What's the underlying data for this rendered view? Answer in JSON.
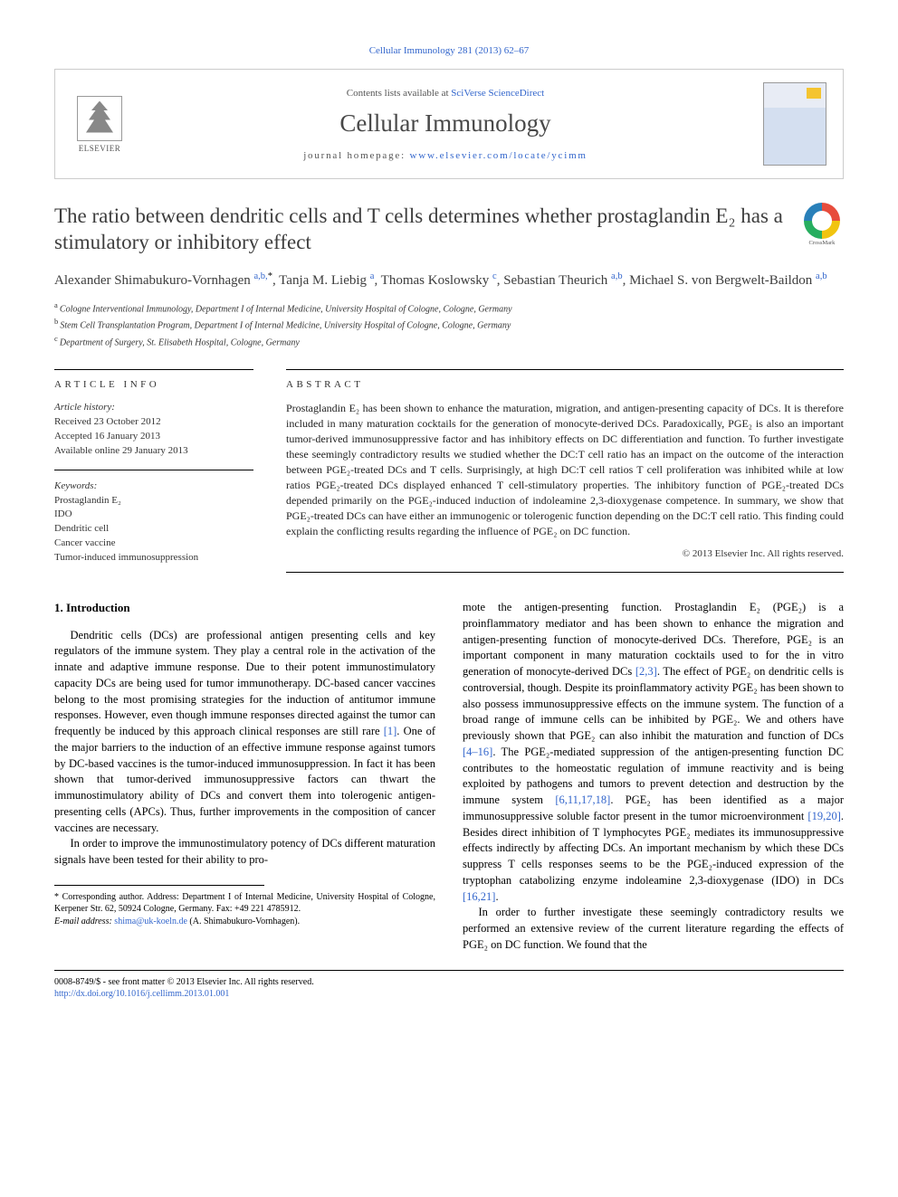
{
  "top_citation": "Cellular Immunology 281 (2013) 62–67",
  "header": {
    "contents_prefix": "Contents lists available at ",
    "contents_link": "SciVerse ScienceDirect",
    "journal": "Cellular Immunology",
    "homepage_prefix": "journal homepage: ",
    "homepage_link": "www.elsevier.com/locate/ycimm",
    "publisher_logo_text": "ELSEVIER"
  },
  "title": "The ratio between dendritic cells and T cells determines whether prostaglandin E₂ has a stimulatory or inhibitory effect",
  "authors_html": "Alexander Shimabukuro-Vornhagen|a,b,*|, Tanja M. Liebig|a|, Thomas Koslowsky|c|, Sebastian Theurich|a,b|, Michael S. von Bergwelt-Baildon|a,b|",
  "authors": [
    {
      "name": "Alexander Shimabukuro-Vornhagen",
      "aff": "a,b,",
      "star": "*"
    },
    {
      "name": "Tanja M. Liebig",
      "aff": "a"
    },
    {
      "name": "Thomas Koslowsky",
      "aff": "c"
    },
    {
      "name": "Sebastian Theurich",
      "aff": "a,b"
    },
    {
      "name": "Michael S. von Bergwelt-Baildon",
      "aff": "a,b"
    }
  ],
  "affiliations": [
    {
      "key": "a",
      "text": "Cologne Interventional Immunology, Department I of Internal Medicine, University Hospital of Cologne, Cologne, Germany"
    },
    {
      "key": "b",
      "text": "Stem Cell Transplantation Program, Department I of Internal Medicine, University Hospital of Cologne, Cologne, Germany"
    },
    {
      "key": "c",
      "text": "Department of Surgery, St. Elisabeth Hospital, Cologne, Germany"
    }
  ],
  "article_info": {
    "label": "ARTICLE INFO",
    "history_label": "Article history:",
    "received": "Received 23 October 2012",
    "accepted": "Accepted 16 January 2013",
    "online": "Available online 29 January 2013",
    "keywords_label": "Keywords:",
    "keywords": [
      "Prostaglandin E₂",
      "IDO",
      "Dendritic cell",
      "Cancer vaccine",
      "Tumor-induced immunosuppression"
    ]
  },
  "abstract": {
    "label": "ABSTRACT",
    "text": "Prostaglandin E₂ has been shown to enhance the maturation, migration, and antigen-presenting capacity of DCs. It is therefore included in many maturation cocktails for the generation of monocyte-derived DCs. Paradoxically, PGE₂ is also an important tumor-derived immunosuppressive factor and has inhibitory effects on DC differentiation and function. To further investigate these seemingly contradictory results we studied whether the DC:T cell ratio has an impact on the outcome of the interaction between PGE₂-treated DCs and T cells. Surprisingly, at high DC:T cell ratios T cell proliferation was inhibited while at low ratios PGE₂-treated DCs displayed enhanced T cell-stimulatory properties. The inhibitory function of PGE₂-treated DCs depended primarily on the PGE₂-induced induction of indoleamine 2,3-dioxygenase competence. In summary, we show that PGE₂-treated DCs can have either an immunogenic or tolerogenic function depending on the DC:T cell ratio. This finding could explain the conflicting results regarding the influence of PGE₂ on DC function.",
    "copyright": "© 2013 Elsevier Inc. All rights reserved."
  },
  "section_heading": "1. Introduction",
  "body": {
    "col1_p1": "Dendritic cells (DCs) are professional antigen presenting cells and key regulators of the immune system. They play a central role in the activation of the innate and adaptive immune response. Due to their potent immunostimulatory capacity DCs are being used for tumor immunotherapy. DC-based cancer vaccines belong to the most promising strategies for the induction of antitumor immune responses. However, even though immune responses directed against the tumor can frequently be induced by this approach clinical responses are still rare ",
    "col1_p1_ref": "[1]",
    "col1_p1_cont": ". One of the major barriers to the induction of an effective immune response against tumors by DC-based vaccines is the tumor-induced immunosuppression. In fact it has been shown that tumor-derived immunosuppressive factors can thwart the immunostimulatory ability of DCs and convert them into tolerogenic antigen-presenting cells (APCs). Thus, further improvements in the composition of cancer vaccines are necessary.",
    "col1_p2": "In order to improve the immunostimulatory potency of DCs different maturation signals have been tested for their ability to pro-",
    "col2_p1": "mote the antigen-presenting function. Prostaglandin E₂ (PGE₂) is a proinflammatory mediator and has been shown to enhance the migration and antigen-presenting function of monocyte-derived DCs. Therefore, PGE₂ is an important component in many maturation cocktails used to for the in vitro generation of monocyte-derived DCs ",
    "col2_p1_ref1": "[2,3]",
    "col2_p1_mid": ". The effect of PGE₂ on dendritic cells is controversial, though. Despite its proinflammatory activity PGE₂ has been shown to also possess immunosuppressive effects on the immune system. The function of a broad range of immune cells can be inhibited by PGE₂. We and others have previously shown that PGE₂ can also inhibit the maturation and function of DCs ",
    "col2_p1_ref2": "[4–16]",
    "col2_p1_mid2": ". The PGE₂-mediated suppression of the antigen-presenting function DC contributes to the homeostatic regulation of immune reactivity and is being exploited by pathogens and tumors to prevent detection and destruction by the immune system ",
    "col2_p1_ref3": "[6,11,17,18]",
    "col2_p1_mid3": ". PGE₂ has been identified as a major immunosuppressive soluble factor present in the tumor microenvironment ",
    "col2_p1_ref4": "[19,20]",
    "col2_p1_mid4": ". Besides direct inhibition of T lymphocytes PGE₂ mediates its immunosuppressive effects indirectly by affecting DCs. An important mechanism by which these DCs suppress T cells responses seems to be the PGE₂-induced expression of the tryptophan catabolizing enzyme indoleamine 2,3-dioxygenase (IDO) in DCs ",
    "col2_p1_ref5": "[16,21]",
    "col2_p1_end": ".",
    "col2_p2": "In order to further investigate these seemingly contradictory results we performed an extensive review of the current literature regarding the effects of PGE₂ on DC function. We found that the"
  },
  "footnotes": {
    "corr": "* Corresponding author. Address: Department I of Internal Medicine, University Hospital of Cologne, Kerpener Str. 62, 50924 Cologne, Germany. Fax: +49 221 4785912.",
    "email_label": "E-mail address: ",
    "email": "shima@uk-koeln.de",
    "email_suffix": " (A. Shimabukuro-Vornhagen)."
  },
  "footer": {
    "left_line1": "0008-8749/$ - see front matter © 2013 Elsevier Inc. All rights reserved.",
    "doi": "http://dx.doi.org/10.1016/j.cellimm.2013.01.001"
  },
  "crossmark_label": "CrossMark"
}
